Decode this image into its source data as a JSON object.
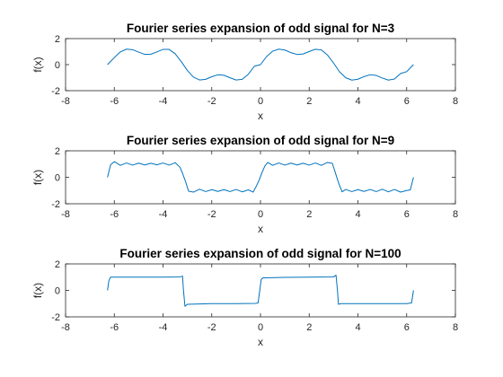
{
  "chart_data": [
    {
      "type": "line",
      "title": "Fourier series expansion of odd signal for N=3",
      "xlabel": "x",
      "ylabel": "f(x)",
      "xlim": [
        -8,
        8
      ],
      "ylim": [
        -2,
        2
      ],
      "xticks": [
        -8,
        -6,
        -4,
        -2,
        0,
        2,
        4,
        6,
        8
      ],
      "yticks": [
        -2,
        0,
        2
      ],
      "series": [
        {
          "color": "#0072bd",
          "x": [
            -6.28,
            -6.0,
            -5.75,
            -5.5,
            -5.25,
            -5.0,
            -4.75,
            -4.5,
            -4.25,
            -4.0,
            -3.75,
            -3.5,
            -3.25,
            -3.0,
            -2.75,
            -2.5,
            -2.25,
            -2.0,
            -1.75,
            -1.5,
            -1.25,
            -1.0,
            -0.75,
            -0.5,
            -0.25,
            0.0,
            0.25,
            0.5,
            0.75,
            1.0,
            1.25,
            1.5,
            1.75,
            2.0,
            2.25,
            2.5,
            2.75,
            3.0,
            3.25,
            3.5,
            3.75,
            4.0,
            4.25,
            4.5,
            4.75,
            5.0,
            5.25,
            5.5,
            5.75,
            6.0,
            6.28
          ],
          "y": [
            0.0,
            0.54,
            0.98,
            1.19,
            1.15,
            0.96,
            0.79,
            0.8,
            0.98,
            1.17,
            1.17,
            0.83,
            0.23,
            -0.45,
            -0.96,
            -1.18,
            -1.13,
            -0.93,
            -0.78,
            -0.82,
            -1.01,
            -1.18,
            -1.13,
            -0.74,
            -0.12,
            0.0,
            0.62,
            1.03,
            1.19,
            1.12,
            0.92,
            0.78,
            0.82,
            1.01,
            1.18,
            1.13,
            0.74,
            0.12,
            -0.56,
            -1.01,
            -1.19,
            -1.12,
            -0.92,
            -0.78,
            -0.83,
            -1.03,
            -1.19,
            -1.1,
            -0.68,
            -0.54,
            0.0
          ]
        }
      ]
    },
    {
      "type": "line",
      "title": "Fourier series expansion of odd signal for N=9",
      "xlabel": "x",
      "ylabel": "f(x)",
      "xlim": [
        -8,
        8
      ],
      "ylim": [
        -2,
        2
      ],
      "xticks": [
        -8,
        -6,
        -4,
        -2,
        0,
        2,
        4,
        6,
        8
      ],
      "yticks": [
        -2,
        0,
        2
      ],
      "series": [
        {
          "color": "#0072bd",
          "x": [
            -6.28,
            -6.15,
            -6.0,
            -5.75,
            -5.5,
            -5.25,
            -5.0,
            -4.75,
            -4.5,
            -4.25,
            -4.0,
            -3.75,
            -3.5,
            -3.3,
            -3.2,
            -3.08,
            -2.95,
            -2.75,
            -2.5,
            -2.25,
            -2.0,
            -1.75,
            -1.5,
            -1.25,
            -1.0,
            -0.75,
            -0.5,
            -0.3,
            -0.18,
            -0.05,
            0.05,
            0.18,
            0.3,
            0.5,
            0.75,
            1.0,
            1.25,
            1.5,
            1.75,
            2.0,
            2.25,
            2.5,
            2.75,
            2.95,
            3.08,
            3.2,
            3.35,
            3.5,
            3.75,
            4.0,
            4.25,
            4.5,
            4.75,
            5.0,
            5.25,
            5.5,
            5.75,
            6.0,
            6.15,
            6.28
          ],
          "y": [
            0.0,
            0.95,
            1.18,
            0.9,
            1.08,
            0.92,
            1.07,
            0.93,
            1.06,
            0.94,
            1.08,
            0.92,
            1.1,
            0.75,
            0.3,
            -0.3,
            -1.05,
            -1.12,
            -0.9,
            -1.08,
            -0.93,
            -1.07,
            -0.93,
            -1.08,
            -0.92,
            -1.1,
            -0.95,
            -1.12,
            -0.7,
            -0.2,
            0.3,
            0.85,
            1.12,
            0.9,
            1.08,
            0.92,
            1.07,
            0.93,
            1.06,
            0.92,
            1.08,
            0.9,
            1.12,
            1.05,
            0.3,
            -0.4,
            -1.1,
            -0.92,
            -1.08,
            -0.93,
            -1.07,
            -0.92,
            -1.08,
            -0.9,
            -1.1,
            -0.92,
            -1.12,
            -1.0,
            -0.95,
            0.0
          ]
        }
      ]
    },
    {
      "type": "line",
      "title": "Fourier series expansion of odd signal for N=100",
      "xlabel": "x",
      "ylabel": "f(x)",
      "xlim": [
        -8,
        8
      ],
      "ylim": [
        -2,
        2
      ],
      "xticks": [
        -8,
        -6,
        -4,
        -2,
        0,
        2,
        4,
        6,
        8
      ],
      "yticks": [
        -2,
        0,
        2
      ],
      "series": [
        {
          "color": "#0072bd",
          "x": [
            -6.28,
            -6.22,
            -6.15,
            -5.0,
            -4.0,
            -3.3,
            -3.2,
            -3.16,
            -3.1,
            -3.0,
            -2.0,
            -1.0,
            -0.2,
            -0.1,
            -0.03,
            0.03,
            0.1,
            0.2,
            1.0,
            2.0,
            3.0,
            3.1,
            3.16,
            3.2,
            3.3,
            4.0,
            5.0,
            6.0,
            6.2,
            6.28
          ],
          "y": [
            0.0,
            0.75,
            1.0,
            1.0,
            1.0,
            1.02,
            1.08,
            0.0,
            -1.2,
            -1.05,
            -1.0,
            -1.0,
            -0.98,
            -0.95,
            0.0,
            0.82,
            0.95,
            0.95,
            0.98,
            1.0,
            1.02,
            1.15,
            0.0,
            -1.05,
            -1.0,
            -1.0,
            -1.0,
            -1.0,
            -0.95,
            0.0
          ]
        }
      ]
    }
  ]
}
